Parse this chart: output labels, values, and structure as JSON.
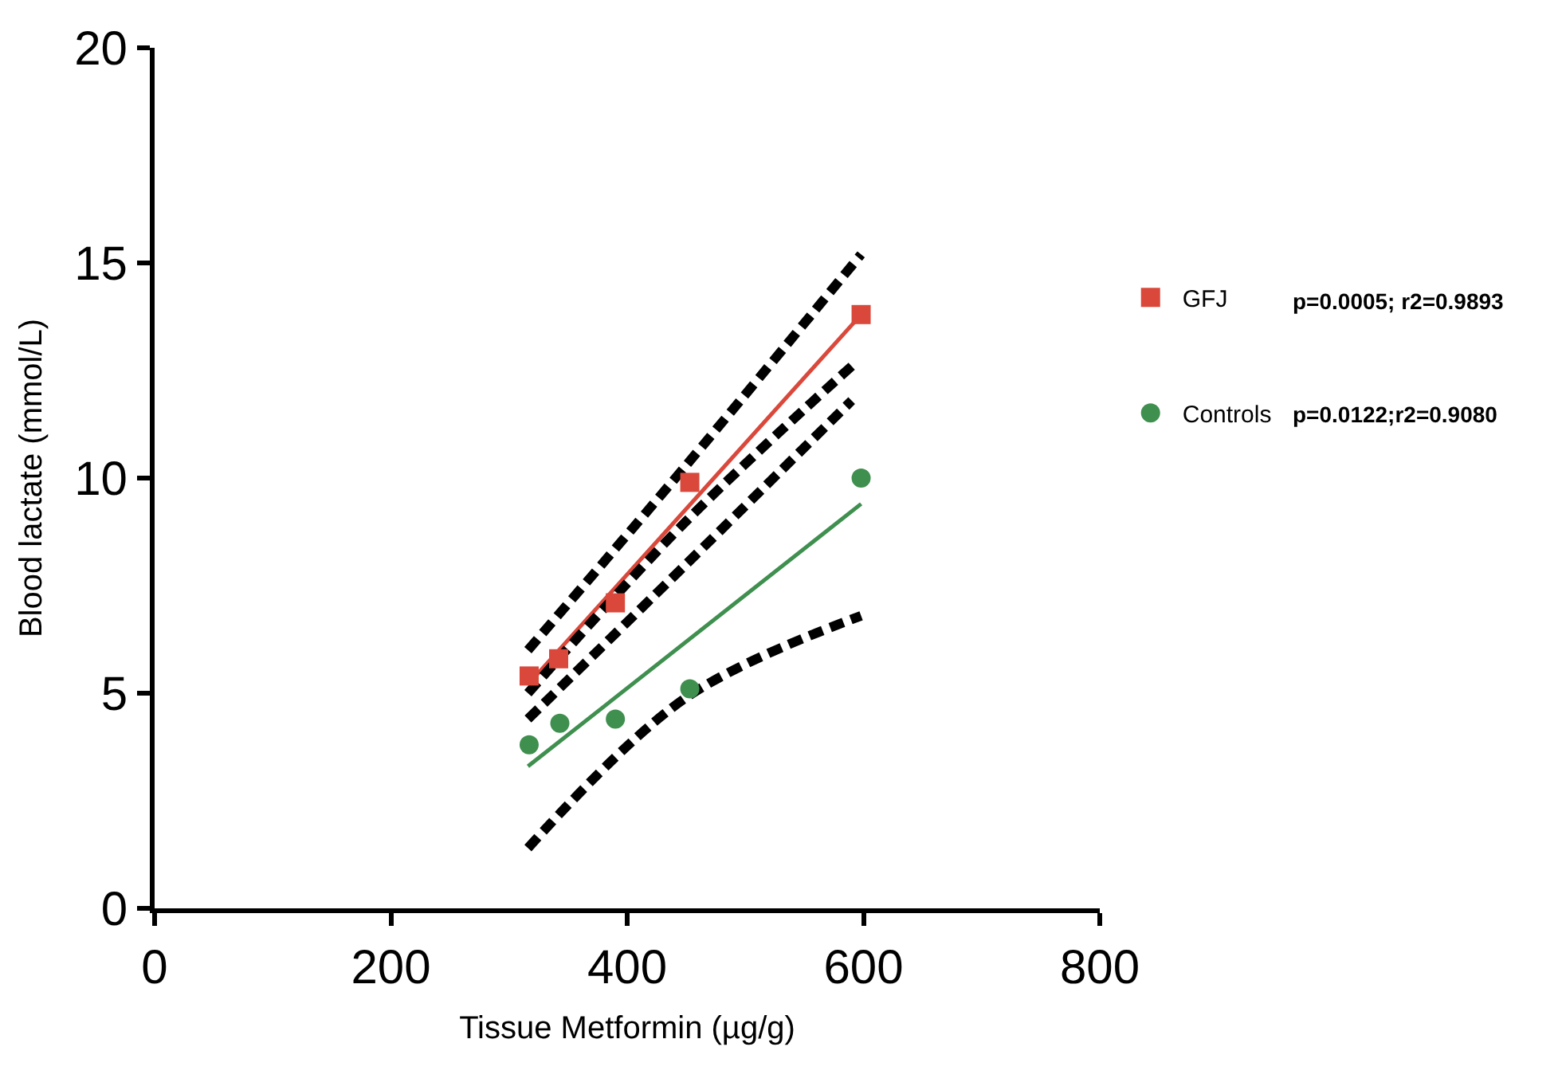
{
  "chart_data": {
    "type": "scatter",
    "xlabel": "Tissue Metformin (µg/g)",
    "ylabel": "Blood lactate (mmol/L)",
    "xlim": [
      0,
      800
    ],
    "xticks": [
      0,
      200,
      400,
      600,
      800
    ],
    "ylim": [
      0,
      20
    ],
    "yticks": [
      0,
      5,
      10,
      15,
      20
    ],
    "legend": "right",
    "series": [
      {
        "name": "GFJ",
        "marker": "square",
        "color": "#d9483b",
        "x": [
          317,
          342,
          390,
          453,
          598
        ],
        "values": [
          5.4,
          5.8,
          7.1,
          9.9,
          13.8
        ]
      },
      {
        "name": "Controls",
        "marker": "circle",
        "color": "#3f8f4f",
        "x": [
          317,
          343,
          390,
          453,
          598
        ],
        "values": [
          3.8,
          4.3,
          4.4,
          5.1,
          10.0
        ]
      },
      {
        "type": "line",
        "color": "#d9483b",
        "x": [
          316,
          598
        ],
        "values": [
          5.2,
          13.8
        ]
      },
      {
        "type": "line",
        "color": "#3f8f4f",
        "x": [
          316,
          598
        ],
        "values": [
          3.3,
          9.4
        ]
      },
      {
        "type": "line",
        "color": "#000000",
        "line_style": "dashed",
        "x": [
          316,
          450,
          598
        ],
        "values": [
          6.0,
          10.3,
          15.2
        ]
      },
      {
        "type": "line",
        "color": "#000000",
        "line_style": "dashed",
        "x": [
          316,
          450,
          590
        ],
        "values": [
          5.0,
          9.0,
          12.6
        ]
      },
      {
        "type": "line",
        "color": "#000000",
        "line_style": "dashed",
        "x": [
          316,
          450,
          590
        ],
        "values": [
          4.4,
          8.0,
          11.8
        ]
      },
      {
        "type": "line",
        "color": "#000000",
        "line_style": "dashed",
        "x": [
          316,
          450,
          598
        ],
        "values": [
          1.4,
          4.9,
          6.8
        ]
      }
    ],
    "annotations": [
      "p=0.0005; r2=0.9893",
      "p=0.0122;r2=0.9080"
    ]
  }
}
